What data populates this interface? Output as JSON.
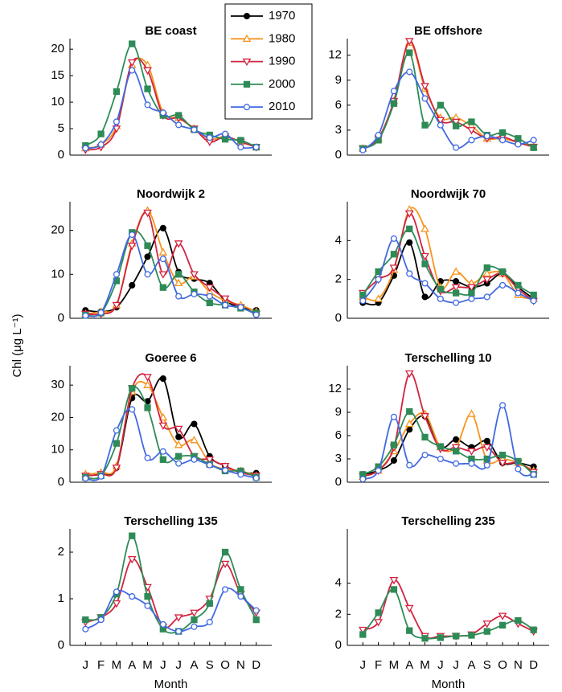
{
  "ylabel": "Chl (μg L⁻¹)",
  "legend": [
    {
      "name": "1970",
      "color": "#000000",
      "marker": "o",
      "filled": true
    },
    {
      "name": "1980",
      "color": "#f7941d",
      "marker": "^",
      "filled": false
    },
    {
      "name": "1990",
      "color": "#d2233f",
      "marker": "v",
      "filled": false
    },
    {
      "name": "2000",
      "color": "#2e8b57",
      "marker": "s",
      "filled": true
    },
    {
      "name": "2010",
      "color": "#4169e1",
      "marker": "o",
      "filled": false
    }
  ],
  "chart_data": [
    {
      "type": "line",
      "title": "BE coast",
      "xlim": [
        0,
        13
      ],
      "ylim": [
        0,
        22
      ],
      "yticks": [
        0,
        5,
        10,
        15,
        20
      ],
      "series": [
        {
          "name": "1980",
          "values": [
            1.3,
            2,
            5.5,
            17,
            17,
            8,
            7,
            5,
            3,
            3.5,
            2.5,
            1.5
          ]
        },
        {
          "name": "1990",
          "values": [
            1,
            1.5,
            5,
            17.5,
            16,
            7.5,
            7,
            5,
            2.5,
            3.5,
            2.5,
            1.5
          ]
        },
        {
          "name": "2000",
          "values": [
            1.8,
            4,
            12,
            21,
            12.5,
            7.5,
            7.5,
            4.8,
            3.8,
            3,
            2.8,
            1.5
          ]
        },
        {
          "name": "2010",
          "values": [
            1.3,
            2,
            6.3,
            16,
            9.5,
            8,
            5.7,
            4.8,
            3.3,
            4,
            1.5,
            1.5
          ]
        }
      ]
    },
    {
      "type": "line",
      "title": "BE offshore",
      "xlim": [
        0,
        13
      ],
      "ylim": [
        0,
        14
      ],
      "yticks": [
        0,
        3,
        6,
        9,
        12
      ],
      "series": [
        {
          "name": "1980",
          "values": [
            0.8,
            2,
            6.5,
            13.5,
            8,
            4.5,
            4.5,
            3.5,
            2,
            2,
            1.5,
            1
          ]
        },
        {
          "name": "1990",
          "values": [
            0.8,
            2,
            6.5,
            13.7,
            8.3,
            4.2,
            4,
            3,
            2,
            2.2,
            1.5,
            1
          ]
        },
        {
          "name": "2000",
          "values": [
            0.8,
            1.8,
            6.2,
            12.3,
            3.6,
            6,
            3.5,
            4,
            2.4,
            2.7,
            2,
            0.9
          ]
        },
        {
          "name": "2010",
          "values": [
            0.6,
            2.4,
            7.7,
            10,
            6.8,
            3.6,
            0.9,
            1.8,
            2.3,
            1.8,
            1.3,
            1.8
          ]
        }
      ]
    },
    {
      "type": "line",
      "title": "Noordwijk 2",
      "xlim": [
        0,
        13
      ],
      "ylim": [
        0,
        26.5
      ],
      "yticks": [
        0,
        10,
        20
      ],
      "series": [
        {
          "name": "1970",
          "values": [
            1.8,
            1.5,
            2.5,
            7.5,
            14,
            20.5,
            10.5,
            9,
            8,
            4,
            2.5,
            1.8
          ]
        },
        {
          "name": "1980",
          "values": [
            1,
            1.5,
            3,
            17,
            24.5,
            15,
            8,
            9.5,
            6,
            4,
            3,
            1.5
          ]
        },
        {
          "name": "1990",
          "values": [
            1,
            1,
            3,
            16.5,
            24,
            10,
            17,
            10,
            7,
            4.5,
            2.5,
            1
          ]
        },
        {
          "name": "2000",
          "values": [
            0.7,
            1.2,
            8.5,
            19.5,
            16.5,
            7,
            10,
            6,
            3.5,
            3,
            2.3,
            1.2
          ]
        },
        {
          "name": "2010",
          "values": [
            0.6,
            1.3,
            10,
            19,
            10,
            13.5,
            5,
            5.5,
            5,
            3,
            2.5,
            0.8
          ]
        }
      ]
    },
    {
      "type": "line",
      "title": "Noordwijk 70",
      "xlim": [
        0,
        13
      ],
      "ylim": [
        0,
        6
      ],
      "yticks": [
        0,
        2,
        4
      ],
      "series": [
        {
          "name": "1970",
          "values": [
            0.8,
            0.8,
            2.2,
            3.9,
            1.1,
            1.9,
            1.9,
            1.6,
            1.8,
            2.3,
            1.6,
            1
          ]
        },
        {
          "name": "1980",
          "values": [
            1.1,
            1,
            2.5,
            5.6,
            4.6,
            1.6,
            2.4,
            1.8,
            2.3,
            2.3,
            1.2,
            1
          ]
        },
        {
          "name": "1990",
          "values": [
            1.3,
            2,
            2.6,
            5.4,
            3.2,
            1.4,
            1.6,
            1.6,
            2,
            2.3,
            1.5,
            0.9
          ]
        },
        {
          "name": "2000",
          "values": [
            1.2,
            2.4,
            3.3,
            4.6,
            2.8,
            1.5,
            1.3,
            1.3,
            2.6,
            2.4,
            1.7,
            1.2
          ]
        },
        {
          "name": "2010",
          "values": [
            0.9,
            2,
            4.1,
            2.3,
            1.8,
            1,
            0.8,
            1,
            1.1,
            1.7,
            1.3,
            0.9
          ]
        }
      ]
    },
    {
      "type": "line",
      "title": "Goeree 6",
      "xlim": [
        0,
        13
      ],
      "ylim": [
        0,
        36
      ],
      "yticks": [
        0,
        10,
        20,
        30
      ],
      "series": [
        {
          "name": "1970",
          "values": [
            2,
            2.5,
            4.5,
            26,
            25,
            32,
            14,
            18,
            8,
            5,
            3,
            2.8
          ]
        },
        {
          "name": "1980",
          "values": [
            2.5,
            3,
            5,
            28,
            30,
            20,
            11.5,
            13,
            6,
            4,
            3.5,
            2
          ]
        },
        {
          "name": "1990",
          "values": [
            2,
            2.5,
            4.5,
            29,
            32.5,
            17.5,
            16.5,
            8,
            7,
            5,
            3,
            2
          ]
        },
        {
          "name": "2000",
          "values": [
            1.5,
            2,
            12,
            29,
            23,
            7,
            8,
            8,
            5.5,
            3.5,
            3.5,
            1.5
          ]
        },
        {
          "name": "2010",
          "values": [
            1.2,
            1.8,
            16,
            22.5,
            7.5,
            9.5,
            5.8,
            7,
            5.3,
            3.7,
            2.4,
            1.3
          ]
        }
      ]
    },
    {
      "type": "line",
      "title": "Terschelling 10",
      "xlim": [
        0,
        13
      ],
      "ylim": [
        0,
        15
      ],
      "yticks": [
        0,
        3,
        6,
        9,
        12
      ],
      "series": [
        {
          "name": "1970",
          "values": [
            1,
            1.5,
            2.8,
            6.8,
            8.5,
            4.5,
            5.5,
            4.5,
            5.3,
            2.5,
            2.5,
            2
          ]
        },
        {
          "name": "1980",
          "values": [
            0.7,
            1.5,
            4,
            7.5,
            8.8,
            4.5,
            4.5,
            8.8,
            2.8,
            3,
            2.5,
            1.5
          ]
        },
        {
          "name": "1990",
          "values": [
            0.8,
            1.5,
            4.5,
            14,
            8.5,
            4.3,
            4.5,
            4,
            4.5,
            2.5,
            2.5,
            1.3
          ]
        },
        {
          "name": "2000",
          "values": [
            1,
            2,
            4.8,
            9.1,
            5.8,
            4.6,
            4,
            3,
            3,
            3.5,
            2.7,
            1
          ]
        },
        {
          "name": "2010",
          "values": [
            0.4,
            1.5,
            8.4,
            2.2,
            3.5,
            3,
            2.4,
            2.4,
            2.2,
            9.9,
            1.7,
            1
          ]
        }
      ]
    },
    {
      "type": "line",
      "title": "Terschelling 135",
      "xlabel": "Month",
      "xlim": [
        0,
        13
      ],
      "ylim": [
        0,
        2.5
      ],
      "yticks": [
        0,
        1,
        2
      ],
      "categories": [
        "J",
        "F",
        "M",
        "A",
        "M",
        "J",
        "J",
        "A",
        "S",
        "O",
        "N",
        "D"
      ],
      "series": [
        {
          "name": "1990",
          "values": [
            0.5,
            0.6,
            0.9,
            1.85,
            1.25,
            0.4,
            0.6,
            0.7,
            1,
            1.75,
            1.1,
            0.7
          ]
        },
        {
          "name": "2000",
          "values": [
            0.55,
            0.6,
            1.1,
            2.35,
            1.05,
            0.35,
            0.3,
            0.55,
            0.9,
            2,
            1.2,
            0.55
          ]
        },
        {
          "name": "2010",
          "values": [
            0.35,
            0.55,
            1.15,
            1.05,
            0.85,
            0.45,
            0.3,
            0.4,
            0.5,
            1.2,
            1.05,
            0.75
          ]
        }
      ]
    },
    {
      "type": "line",
      "title": "Terschelling 235",
      "xlabel": "Month",
      "xlim": [
        0,
        13
      ],
      "ylim": [
        0,
        7.5
      ],
      "yticks": [
        0,
        2,
        4
      ],
      "categories": [
        "J",
        "F",
        "M",
        "A",
        "M",
        "J",
        "J",
        "A",
        "S",
        "O",
        "N",
        "D"
      ],
      "series": [
        {
          "name": "1990",
          "values": [
            1,
            1.5,
            4.2,
            2.4,
            0.6,
            0.6,
            0.6,
            0.7,
            1.4,
            1.9,
            1.4,
            0.9
          ]
        },
        {
          "name": "2000",
          "values": [
            0.7,
            2.1,
            3.6,
            0.95,
            0.45,
            0.5,
            0.6,
            0.65,
            0.9,
            1.3,
            1.6,
            1.0
          ]
        }
      ]
    }
  ]
}
